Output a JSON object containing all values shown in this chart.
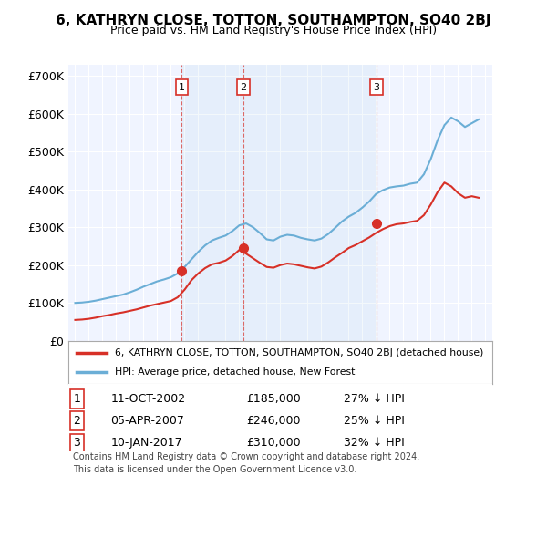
{
  "title": "6, KATHRYN CLOSE, TOTTON, SOUTHAMPTON, SO40 2BJ",
  "subtitle": "Price paid vs. HM Land Registry's House Price Index (HPI)",
  "ylabel": "",
  "background_color": "#f0f4ff",
  "plot_bg_color": "#f0f4ff",
  "ylim": [
    0,
    730000
  ],
  "yticks": [
    0,
    100000,
    200000,
    300000,
    400000,
    500000,
    600000,
    700000
  ],
  "ytick_labels": [
    "£0",
    "£100K",
    "£200K",
    "£300K",
    "£400K",
    "£500K",
    "£600K",
    "£700K"
  ],
  "sale_dates": [
    "2002-10-11",
    "2007-04-05",
    "2017-01-10"
  ],
  "sale_prices": [
    185000,
    246000,
    310000
  ],
  "sale_labels": [
    "1",
    "2",
    "3"
  ],
  "sale_date_strs": [
    "11-OCT-2002",
    "05-APR-2007",
    "10-JAN-2017"
  ],
  "sale_price_strs": [
    "£185,000",
    "£246,000",
    "£310,000"
  ],
  "sale_hpi_strs": [
    "27% ↓ HPI",
    "25% ↓ HPI",
    "32% ↓ HPI"
  ],
  "hpi_color": "#6baed6",
  "price_color": "#d73027",
  "legend_label_price": "6, KATHRYN CLOSE, TOTTON, SOUTHAMPTON, SO40 2BJ (detached house)",
  "legend_label_hpi": "HPI: Average price, detached house, New Forest",
  "footer": "Contains HM Land Registry data © Crown copyright and database right 2024.\nThis data is licensed under the Open Government Licence v3.0.",
  "xlim_start": 1994.5,
  "xlim_end": 2025.5
}
